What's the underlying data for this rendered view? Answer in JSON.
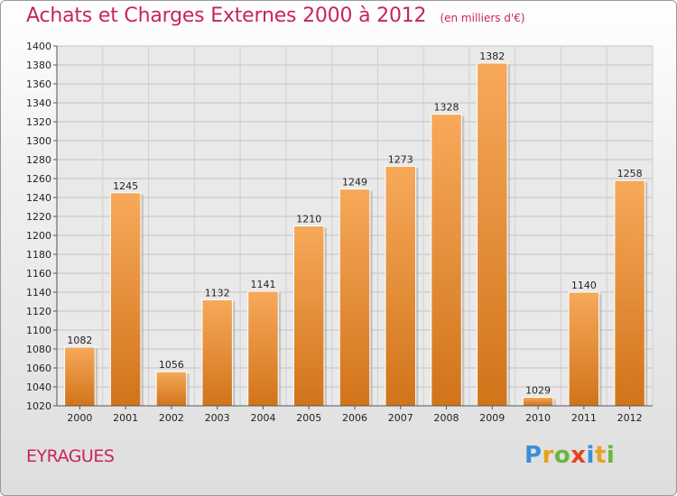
{
  "header": {
    "title": "Achats et Charges Externes 2000 à 2012",
    "subtitle": "(en milliers d'€)"
  },
  "footer": {
    "commune": "EYRAGUES",
    "logo_text": "Proxiti"
  },
  "colors": {
    "title": "#c8255a",
    "bar_top": "#f7a95a",
    "bar_bottom": "#d1741a",
    "logo_letters": [
      "#3a8fd6",
      "#e8a21a",
      "#6bb63a",
      "#e8421a",
      "#3a8fd6",
      "#e8a21a",
      "#6bb63a"
    ]
  },
  "chart_data": {
    "type": "bar",
    "categories": [
      "2000",
      "2001",
      "2002",
      "2003",
      "2004",
      "2005",
      "2006",
      "2007",
      "2008",
      "2009",
      "2010",
      "2011",
      "2012"
    ],
    "values": [
      1082,
      1245,
      1056,
      1132,
      1141,
      1210,
      1249,
      1273,
      1328,
      1382,
      1029,
      1140,
      1258
    ],
    "data_labels": [
      "1082",
      "1245",
      "1056",
      "1132",
      "1141",
      "1210",
      "1249",
      "1273",
      "1328",
      "1382",
      "1029",
      "1140",
      "1258"
    ],
    "ylim": [
      1020,
      1400
    ],
    "yticks": [
      "1020",
      "1040",
      "1060",
      "1080",
      "1100",
      "1120",
      "1140",
      "1160",
      "1180",
      "1200",
      "1220",
      "1240",
      "1260",
      "1280",
      "1300",
      "1320",
      "1340",
      "1360",
      "1380",
      "1400"
    ],
    "grid": true,
    "legend": false
  }
}
